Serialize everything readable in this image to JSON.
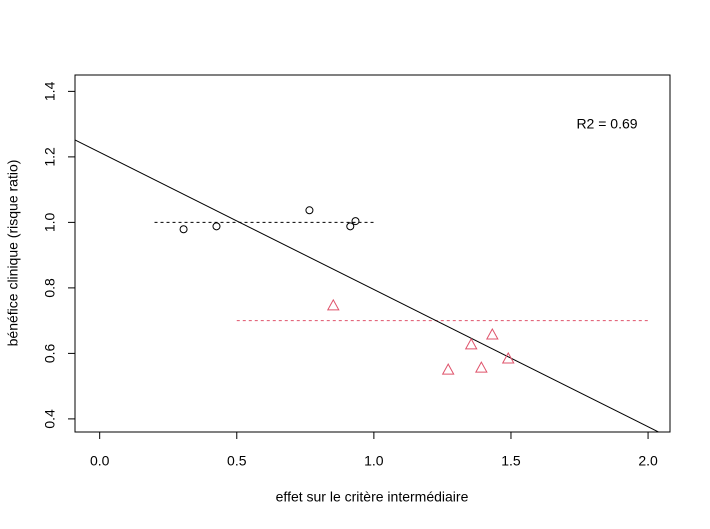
{
  "chart_data": {
    "type": "scatter",
    "x_label": "effet sur le critère intermédiaire",
    "y_label": "bénéfice clinique (risque ratio)",
    "annotation": "R2 = 0.69",
    "xlim": [
      -0.09,
      2.08
    ],
    "ylim": [
      0.36,
      1.45
    ],
    "xticks": [
      {
        "value": 0,
        "label": "0.0"
      },
      {
        "value": 0.5,
        "label": "0.5"
      },
      {
        "value": 1,
        "label": "1.0"
      },
      {
        "value": 1.5,
        "label": "1.5"
      },
      {
        "value": 2,
        "label": "2.0"
      }
    ],
    "yticks": [
      0.4,
      0.6,
      0.8,
      {
        "value": 1,
        "label": "1.0"
      },
      1.2,
      1.4
    ],
    "series": [
      {
        "color": "#000000",
        "marker": "circle",
        "x": [
          0.306,
          0.426,
          0.765,
          0.914,
          0.933
        ],
        "values": [
          0.979,
          0.988,
          1.037,
          0.988,
          1.004
        ]
      },
      {
        "color": "#df536b",
        "marker": "triangle",
        "x": [
          0.852,
          1.271,
          1.355,
          1.392,
          1.432,
          1.49
        ],
        "values": [
          0.745,
          0.549,
          0.626,
          0.555,
          0.656,
          0.583
        ]
      }
    ],
    "hlines": [
      {
        "y": 1.0,
        "x": [
          0.2,
          1.0
        ],
        "color": "#000000"
      },
      {
        "y": 0.7,
        "x": [
          0.5,
          2.0
        ],
        "color": "#df536b"
      }
    ],
    "regression": {
      "intercept": 1.214,
      "slope": -0.419,
      "color": "#000000"
    }
  }
}
